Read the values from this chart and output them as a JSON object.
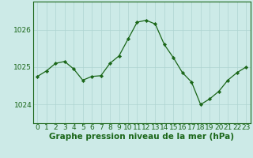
{
  "x": [
    0,
    1,
    2,
    3,
    4,
    5,
    6,
    7,
    8,
    9,
    10,
    11,
    12,
    13,
    14,
    15,
    16,
    17,
    18,
    19,
    20,
    21,
    22,
    23
  ],
  "y": [
    1024.75,
    1024.9,
    1025.1,
    1025.15,
    1024.95,
    1024.65,
    1024.75,
    1024.77,
    1025.1,
    1025.3,
    1025.75,
    1026.2,
    1026.25,
    1026.15,
    1025.6,
    1025.25,
    1024.85,
    1024.6,
    1024.0,
    1024.15,
    1024.35,
    1024.65,
    1024.85,
    1025.0
  ],
  "ylim": [
    1023.5,
    1026.75
  ],
  "yticks": [
    1024,
    1025,
    1026
  ],
  "xticks": [
    0,
    1,
    2,
    3,
    4,
    5,
    6,
    7,
    8,
    9,
    10,
    11,
    12,
    13,
    14,
    15,
    16,
    17,
    18,
    19,
    20,
    21,
    22,
    23
  ],
  "xlabel": "Graphe pression niveau de la mer (hPa)",
  "line_color": "#1a6618",
  "marker_color": "#1a6618",
  "bg_color": "#cceae7",
  "grid_color": "#aed4d1",
  "border_color": "#1a6618",
  "tick_label_color": "#1a6618",
  "xlabel_fontsize": 7.5,
  "tick_fontsize": 6.5
}
